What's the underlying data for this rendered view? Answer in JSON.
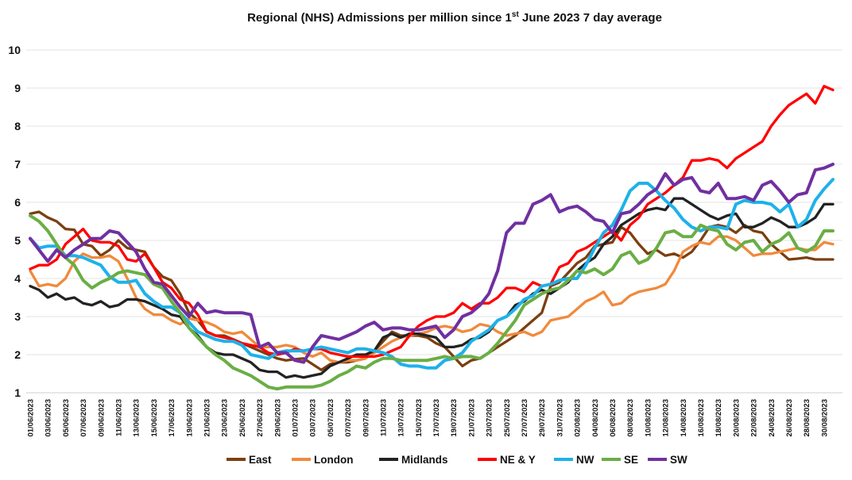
{
  "chart_data": {
    "type": "line",
    "title_prefix": "Regional (NHS) Admissions per million since 1",
    "title_sup": "st",
    "title_suffix": " June 2023 7 day average",
    "xlabel": "",
    "ylabel": "",
    "ylim": [
      1,
      10
    ],
    "yticks": [
      "1",
      "2",
      "3",
      "4",
      "5",
      "6",
      "7",
      "8",
      "9",
      "10"
    ],
    "grid": "horizontal",
    "legend_position": "bottom",
    "x": [
      "01/06/2023",
      "02/06/2023",
      "03/06/2023",
      "04/06/2023",
      "05/06/2023",
      "06/06/2023",
      "07/06/2023",
      "08/06/2023",
      "09/06/2023",
      "10/06/2023",
      "11/06/2023",
      "12/06/2023",
      "13/06/2023",
      "14/06/2023",
      "15/06/2023",
      "16/06/2023",
      "17/06/2023",
      "18/06/2023",
      "19/06/2023",
      "20/06/2023",
      "21/06/2023",
      "22/06/2023",
      "23/06/2023",
      "24/06/2023",
      "25/06/2023",
      "26/06/2023",
      "27/06/2023",
      "28/06/2023",
      "29/06/2023",
      "30/06/2023",
      "01/07/2023",
      "02/07/2023",
      "03/07/2023",
      "04/07/2023",
      "05/07/2023",
      "06/07/2023",
      "07/07/2023",
      "08/07/2023",
      "09/07/2023",
      "10/07/2023",
      "11/07/2023",
      "12/07/2023",
      "13/07/2023",
      "14/07/2023",
      "15/07/2023",
      "16/07/2023",
      "17/07/2023",
      "18/07/2023",
      "19/07/2023",
      "20/07/2023",
      "21/07/2023",
      "22/07/2023",
      "23/07/2023",
      "24/07/2023",
      "25/07/2023",
      "26/07/2023",
      "27/07/2023",
      "28/07/2023",
      "29/07/2023",
      "30/07/2023",
      "31/07/2023",
      "01/08/2023",
      "02/08/2023",
      "03/08/2023",
      "04/08/2023",
      "05/08/2023",
      "06/08/2023",
      "07/08/2023",
      "08/08/2023",
      "09/08/2023",
      "10/08/2023",
      "11/08/2023",
      "12/08/2023",
      "13/08/2023",
      "14/08/2023",
      "15/08/2023",
      "16/08/2023",
      "17/08/2023",
      "18/08/2023",
      "19/08/2023",
      "20/08/2023",
      "21/08/2023",
      "22/08/2023",
      "23/08/2023",
      "24/08/2023",
      "25/08/2023",
      "26/08/2023",
      "27/08/2023",
      "28/08/2023",
      "29/08/2023",
      "30/08/2023",
      "31/08/2023"
    ],
    "x_tick_labels": [
      "01/06/2023",
      "03/06/2023",
      "05/06/2023",
      "07/06/2023",
      "09/06/2023",
      "11/06/2023",
      "13/06/2023",
      "15/06/2023",
      "17/06/2023",
      "19/06/2023",
      "21/06/2023",
      "23/06/2023",
      "25/06/2023",
      "27/06/2023",
      "29/06/2023",
      "01/07/2023",
      "03/07/2023",
      "05/07/2023",
      "07/07/2023",
      "09/07/2023",
      "11/07/2023",
      "13/07/2023",
      "15/07/2023",
      "17/07/2023",
      "19/07/2023",
      "21/07/2023",
      "23/07/2023",
      "25/07/2023",
      "27/07/2023",
      "29/07/2023",
      "31/07/2023",
      "02/08/2023",
      "04/08/2023",
      "06/08/2023",
      "08/08/2023",
      "10/08/2023",
      "12/08/2023",
      "14/08/2023",
      "16/08/2023",
      "18/08/2023",
      "20/08/2023",
      "22/08/2023",
      "24/08/2023",
      "26/08/2023",
      "28/08/2023",
      "30/08/2023"
    ],
    "series": [
      {
        "name": "East",
        "color": "#7B3F10",
        "values": [
          5.7,
          5.75,
          5.6,
          5.5,
          5.3,
          5.28,
          4.9,
          4.85,
          4.6,
          4.75,
          5.0,
          4.8,
          4.75,
          4.7,
          4.3,
          4.05,
          3.95,
          3.6,
          3.1,
          2.9,
          2.6,
          2.5,
          2.5,
          2.4,
          2.3,
          2.2,
          2.1,
          2.0,
          1.9,
          1.85,
          1.88,
          1.9,
          1.75,
          1.6,
          1.75,
          1.8,
          1.8,
          1.85,
          1.9,
          2.1,
          2.35,
          2.6,
          2.5,
          2.5,
          2.5,
          2.45,
          2.3,
          2.2,
          1.95,
          1.7,
          1.85,
          1.9,
          2.05,
          2.2,
          2.35,
          2.5,
          2.7,
          2.9,
          3.1,
          3.8,
          3.9,
          4.15,
          4.4,
          4.55,
          4.85,
          4.9,
          4.95,
          5.35,
          5.2,
          4.9,
          4.65,
          4.75,
          4.6,
          4.65,
          4.55,
          4.7,
          5.0,
          5.35,
          5.4,
          5.35,
          5.2,
          5.4,
          5.25,
          5.2,
          4.9,
          4.7,
          4.5,
          4.52,
          4.55,
          4.5,
          4.5,
          4.5
        ]
      },
      {
        "name": "London",
        "color": "#F08A3C",
        "values": [
          4.2,
          3.8,
          3.85,
          3.8,
          4.0,
          4.45,
          4.65,
          4.55,
          4.55,
          4.6,
          4.45,
          4.0,
          3.5,
          3.2,
          3.05,
          3.05,
          2.9,
          2.8,
          2.95,
          2.9,
          2.85,
          2.75,
          2.6,
          2.55,
          2.6,
          2.4,
          2.2,
          2.2,
          2.2,
          2.25,
          2.2,
          2.05,
          1.95,
          2.05,
          1.85,
          1.8,
          1.85,
          1.85,
          1.9,
          2.05,
          2.2,
          2.35,
          2.45,
          2.5,
          2.55,
          2.6,
          2.7,
          2.75,
          2.7,
          2.6,
          2.65,
          2.8,
          2.75,
          2.6,
          2.5,
          2.55,
          2.6,
          2.5,
          2.6,
          2.9,
          2.95,
          3.0,
          3.2,
          3.4,
          3.5,
          3.65,
          3.3,
          3.35,
          3.55,
          3.65,
          3.7,
          3.75,
          3.85,
          4.2,
          4.7,
          4.85,
          4.95,
          4.9,
          5.1,
          5.1,
          5.0,
          4.8,
          4.6,
          4.65,
          4.65,
          4.7,
          4.75,
          4.8,
          4.75,
          4.75,
          4.95,
          4.9
        ]
      },
      {
        "name": "Midlands",
        "color": "#222222",
        "values": [
          3.8,
          3.7,
          3.5,
          3.6,
          3.45,
          3.5,
          3.35,
          3.3,
          3.4,
          3.25,
          3.3,
          3.45,
          3.45,
          3.4,
          3.3,
          3.2,
          3.05,
          3.0,
          2.7,
          2.5,
          2.2,
          2.05,
          2.0,
          2.0,
          1.9,
          1.8,
          1.6,
          1.55,
          1.55,
          1.4,
          1.45,
          1.4,
          1.45,
          1.5,
          1.7,
          1.8,
          1.9,
          2.0,
          2.0,
          2.1,
          2.45,
          2.55,
          2.45,
          2.55,
          2.55,
          2.5,
          2.45,
          2.2,
          2.2,
          2.25,
          2.4,
          2.45,
          2.6,
          2.9,
          3.0,
          3.3,
          3.4,
          3.6,
          3.7,
          3.6,
          3.75,
          3.9,
          4.2,
          4.4,
          4.55,
          4.9,
          5.1,
          5.4,
          5.55,
          5.7,
          5.8,
          5.85,
          5.8,
          6.1,
          6.1,
          5.95,
          5.8,
          5.65,
          5.55,
          5.65,
          5.7,
          5.35,
          5.35,
          5.45,
          5.6,
          5.5,
          5.35,
          5.35,
          5.45,
          5.6,
          5.95,
          5.95
        ]
      },
      {
        "name": "NE & Y",
        "color": "#FF0000",
        "values": [
          4.25,
          4.35,
          4.35,
          4.5,
          4.9,
          5.1,
          5.3,
          5.0,
          4.95,
          4.95,
          4.85,
          4.5,
          4.45,
          4.65,
          4.3,
          3.9,
          3.75,
          3.45,
          3.35,
          3.05,
          2.6,
          2.5,
          2.45,
          2.4,
          2.3,
          2.25,
          2.2,
          2.05,
          2.0,
          2.05,
          2.15,
          2.1,
          2.15,
          2.15,
          2.05,
          2.0,
          1.95,
          1.95,
          1.95,
          1.95,
          2.0,
          2.1,
          2.2,
          2.5,
          2.75,
          2.9,
          3.0,
          3.0,
          3.1,
          3.35,
          3.2,
          3.35,
          3.35,
          3.5,
          3.75,
          3.75,
          3.65,
          3.9,
          3.8,
          3.85,
          4.3,
          4.4,
          4.7,
          4.8,
          4.95,
          5.1,
          5.25,
          5.0,
          5.4,
          5.6,
          5.95,
          6.1,
          6.25,
          6.45,
          6.65,
          7.1,
          7.1,
          7.15,
          7.1,
          6.9,
          7.15,
          7.3,
          7.45,
          7.6,
          8.0,
          8.3,
          8.55,
          8.7,
          8.85,
          8.6,
          9.05,
          8.95
        ]
      },
      {
        "name": "NW",
        "color": "#1EB1EA",
        "values": [
          5.05,
          4.8,
          4.85,
          4.85,
          4.6,
          4.6,
          4.55,
          4.45,
          4.35,
          4.05,
          3.9,
          3.9,
          3.95,
          3.6,
          3.4,
          3.25,
          3.25,
          3.1,
          2.85,
          2.6,
          2.5,
          2.4,
          2.35,
          2.35,
          2.25,
          2.0,
          1.95,
          1.9,
          2.05,
          2.1,
          2.1,
          2.1,
          2.15,
          2.2,
          2.15,
          2.1,
          2.05,
          2.15,
          2.15,
          2.1,
          2.05,
          1.95,
          1.75,
          1.7,
          1.7,
          1.65,
          1.65,
          1.85,
          1.9,
          2.05,
          2.35,
          2.5,
          2.65,
          2.9,
          3.0,
          3.2,
          3.45,
          3.55,
          3.8,
          3.85,
          3.95,
          4.0,
          4.0,
          4.35,
          4.8,
          5.2,
          5.4,
          5.8,
          6.3,
          6.5,
          6.5,
          6.3,
          6.05,
          5.85,
          5.55,
          5.35,
          5.25,
          5.35,
          5.35,
          5.3,
          5.95,
          6.05,
          6.0,
          6.0,
          5.95,
          5.75,
          5.95,
          5.35,
          5.55,
          6.05,
          6.35,
          6.6
        ]
      },
      {
        "name": "SE",
        "color": "#6AAE45",
        "values": [
          5.65,
          5.5,
          5.25,
          4.9,
          4.55,
          4.35,
          3.95,
          3.75,
          3.9,
          4.0,
          4.15,
          4.2,
          4.15,
          4.1,
          3.85,
          3.75,
          3.4,
          3.1,
          2.7,
          2.45,
          2.2,
          2.0,
          1.85,
          1.65,
          1.55,
          1.45,
          1.3,
          1.15,
          1.1,
          1.15,
          1.15,
          1.15,
          1.15,
          1.2,
          1.3,
          1.45,
          1.55,
          1.7,
          1.65,
          1.8,
          1.9,
          1.9,
          1.85,
          1.85,
          1.85,
          1.85,
          1.9,
          1.95,
          1.9,
          1.95,
          1.95,
          1.9,
          2.05,
          2.3,
          2.6,
          2.9,
          3.3,
          3.45,
          3.6,
          3.7,
          3.75,
          3.95,
          4.2,
          4.15,
          4.25,
          4.1,
          4.25,
          4.6,
          4.7,
          4.4,
          4.5,
          4.8,
          5.2,
          5.25,
          5.1,
          5.1,
          5.4,
          5.3,
          5.25,
          4.9,
          4.75,
          4.95,
          5.0,
          4.7,
          4.9,
          5.0,
          5.2,
          4.8,
          4.7,
          4.85,
          5.25,
          5.25
        ]
      },
      {
        "name": "SW",
        "color": "#7030A0",
        "values": [
          5.05,
          4.75,
          4.45,
          4.75,
          4.55,
          4.75,
          4.9,
          5.05,
          5.05,
          5.25,
          5.2,
          4.95,
          4.7,
          4.25,
          3.9,
          3.85,
          3.55,
          3.25,
          3.0,
          3.35,
          3.1,
          3.15,
          3.1,
          3.1,
          3.1,
          3.05,
          2.2,
          2.3,
          2.05,
          2.05,
          1.85,
          1.8,
          2.2,
          2.5,
          2.45,
          2.4,
          2.5,
          2.6,
          2.75,
          2.85,
          2.65,
          2.7,
          2.7,
          2.65,
          2.65,
          2.7,
          2.75,
          2.45,
          2.65,
          3.0,
          3.1,
          3.3,
          3.6,
          4.2,
          5.2,
          5.45,
          5.45,
          5.95,
          6.05,
          6.2,
          5.75,
          5.85,
          5.9,
          5.75,
          5.55,
          5.5,
          5.2,
          5.7,
          5.75,
          5.95,
          6.2,
          6.35,
          6.75,
          6.45,
          6.6,
          6.65,
          6.3,
          6.25,
          6.5,
          6.1,
          6.1,
          6.15,
          6.05,
          6.45,
          6.55,
          6.3,
          6.0,
          6.2,
          6.25,
          6.85,
          6.9,
          7.0
        ]
      }
    ]
  }
}
